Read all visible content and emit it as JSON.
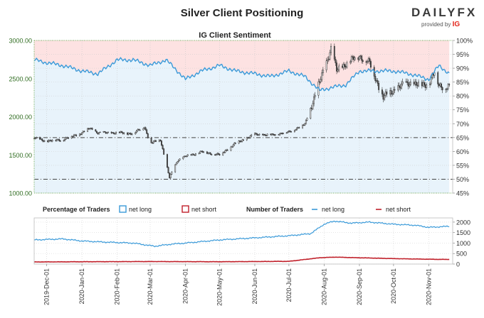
{
  "page_title": "Silver Client Positioning",
  "logo": {
    "brand_left": "DAILY",
    "brand_right": "FX",
    "provided_by": "provided by",
    "provider": "IG"
  },
  "colors": {
    "net_long": "#3a9ad9",
    "net_short": "#c0202a",
    "bull_candle": "#2a2a2a",
    "bear_candle": "#555555",
    "short_zone": "#fde2e2",
    "long_zone": "#e8f3fb"
  },
  "chart_data": [
    {
      "type": "candlestick",
      "title": "IG Client Sentiment",
      "y_left_label": "",
      "y_left_ticks": [
        "1000.00",
        "1500.00",
        "2000.00",
        "2500.00",
        "3000.00"
      ],
      "y_left_range": [
        1000,
        3000
      ],
      "y_right_ticks": [
        "45%",
        "50%",
        "55%",
        "60%",
        "65%",
        "70%",
        "75%",
        "80%",
        "85%",
        "90%",
        "95%",
        "100%"
      ],
      "y_right_range": [
        45,
        100
      ],
      "reference_lines_pct": [
        50,
        65
      ],
      "price_points": [
        {
          "t": "2019-11-20",
          "v": 1720
        },
        {
          "t": "2019-12-01",
          "v": 1680
        },
        {
          "t": "2019-12-15",
          "v": 1700
        },
        {
          "t": "2020-01-01",
          "v": 1790
        },
        {
          "t": "2020-01-08",
          "v": 1850
        },
        {
          "t": "2020-01-15",
          "v": 1790
        },
        {
          "t": "2020-02-01",
          "v": 1790
        },
        {
          "t": "2020-02-15",
          "v": 1780
        },
        {
          "t": "2020-02-25",
          "v": 1870
        },
        {
          "t": "2020-03-01",
          "v": 1650
        },
        {
          "t": "2020-03-10",
          "v": 1700
        },
        {
          "t": "2020-03-18",
          "v": 1200
        },
        {
          "t": "2020-03-25",
          "v": 1430
        },
        {
          "t": "2020-04-01",
          "v": 1480
        },
        {
          "t": "2020-04-15",
          "v": 1540
        },
        {
          "t": "2020-05-01",
          "v": 1500
        },
        {
          "t": "2020-05-15",
          "v": 1650
        },
        {
          "t": "2020-06-01",
          "v": 1770
        },
        {
          "t": "2020-06-15",
          "v": 1760
        },
        {
          "t": "2020-07-01",
          "v": 1800
        },
        {
          "t": "2020-07-15",
          "v": 1900
        },
        {
          "t": "2020-07-22",
          "v": 2200
        },
        {
          "t": "2020-07-28",
          "v": 2450
        },
        {
          "t": "2020-08-07",
          "v": 2900
        },
        {
          "t": "2020-08-12",
          "v": 2600
        },
        {
          "t": "2020-08-20",
          "v": 2700
        },
        {
          "t": "2020-09-01",
          "v": 2800
        },
        {
          "t": "2020-09-10",
          "v": 2700
        },
        {
          "t": "2020-09-22",
          "v": 2250
        },
        {
          "t": "2020-10-01",
          "v": 2350
        },
        {
          "t": "2020-10-15",
          "v": 2450
        },
        {
          "t": "2020-10-25",
          "v": 2400
        },
        {
          "t": "2020-11-01",
          "v": 2450
        },
        {
          "t": "2020-11-06",
          "v": 2580
        },
        {
          "t": "2020-11-10",
          "v": 2400
        },
        {
          "t": "2020-11-19",
          "v": 2400
        }
      ],
      "net_long_pct_points": [
        {
          "t": "2019-11-20",
          "v": 93
        },
        {
          "t": "2019-12-01",
          "v": 92
        },
        {
          "t": "2019-12-15",
          "v": 91
        },
        {
          "t": "2020-01-01",
          "v": 89
        },
        {
          "t": "2020-01-15",
          "v": 88
        },
        {
          "t": "2020-02-01",
          "v": 93
        },
        {
          "t": "2020-02-15",
          "v": 93
        },
        {
          "t": "2020-03-01",
          "v": 91
        },
        {
          "t": "2020-03-15",
          "v": 93
        },
        {
          "t": "2020-03-25",
          "v": 89
        },
        {
          "t": "2020-04-01",
          "v": 86
        },
        {
          "t": "2020-04-15",
          "v": 89
        },
        {
          "t": "2020-05-01",
          "v": 91
        },
        {
          "t": "2020-05-15",
          "v": 89
        },
        {
          "t": "2020-06-01",
          "v": 88
        },
        {
          "t": "2020-06-15",
          "v": 87
        },
        {
          "t": "2020-07-01",
          "v": 89
        },
        {
          "t": "2020-07-15",
          "v": 87
        },
        {
          "t": "2020-07-28",
          "v": 82
        },
        {
          "t": "2020-08-07",
          "v": 83
        },
        {
          "t": "2020-08-20",
          "v": 84
        },
        {
          "t": "2020-09-01",
          "v": 89
        },
        {
          "t": "2020-09-15",
          "v": 89
        },
        {
          "t": "2020-10-01",
          "v": 89
        },
        {
          "t": "2020-10-15",
          "v": 88
        },
        {
          "t": "2020-11-01",
          "v": 86
        },
        {
          "t": "2020-11-10",
          "v": 91
        },
        {
          "t": "2020-11-19",
          "v": 88
        }
      ]
    },
    {
      "type": "line",
      "title": "",
      "legend_left": {
        "heading": "Percentage of Traders",
        "items": [
          "net long",
          "net short"
        ]
      },
      "legend_right": {
        "heading": "Number of Traders",
        "items": [
          "net long",
          "net short"
        ]
      },
      "y_right_ticks": [
        "0",
        "500",
        "1000",
        "1500",
        "2000"
      ],
      "y_range": [
        0,
        2200
      ],
      "x_tick_labels": [
        "2019-Dec-01",
        "2020-Jan-01",
        "2020-Feb-01",
        "2020-Mar-01",
        "2020-Apr-01",
        "2020-May-01",
        "2020-Jun-01",
        "2020-Jul-01",
        "2020-Aug-01",
        "2020-Sep-01",
        "2020-Oct-01",
        "2020-Nov-01"
      ],
      "x_ticks": [
        "2019-12-01",
        "2020-01-01",
        "2020-02-01",
        "2020-03-01",
        "2020-04-01",
        "2020-05-01",
        "2020-06-01",
        "2020-07-01",
        "2020-08-01",
        "2020-09-01",
        "2020-10-01",
        "2020-11-01"
      ],
      "x_range": [
        "2019-11-20",
        "2020-11-22"
      ],
      "series": [
        {
          "name": "net long",
          "points": [
            {
              "t": "2019-11-20",
              "v": 1150
            },
            {
              "t": "2019-12-15",
              "v": 1200
            },
            {
              "t": "2020-01-01",
              "v": 1100
            },
            {
              "t": "2020-01-20",
              "v": 1050
            },
            {
              "t": "2020-02-15",
              "v": 1000
            },
            {
              "t": "2020-03-05",
              "v": 850
            },
            {
              "t": "2020-03-20",
              "v": 950
            },
            {
              "t": "2020-04-01",
              "v": 1000
            },
            {
              "t": "2020-05-01",
              "v": 1150
            },
            {
              "t": "2020-06-01",
              "v": 1250
            },
            {
              "t": "2020-07-01",
              "v": 1350
            },
            {
              "t": "2020-07-20",
              "v": 1450
            },
            {
              "t": "2020-08-01",
              "v": 1900
            },
            {
              "t": "2020-08-10",
              "v": 2050
            },
            {
              "t": "2020-08-25",
              "v": 1950
            },
            {
              "t": "2020-09-10",
              "v": 2000
            },
            {
              "t": "2020-10-01",
              "v": 1900
            },
            {
              "t": "2020-10-20",
              "v": 1850
            },
            {
              "t": "2020-11-01",
              "v": 1750
            },
            {
              "t": "2020-11-19",
              "v": 1800
            }
          ]
        },
        {
          "name": "net short",
          "points": [
            {
              "t": "2019-11-20",
              "v": 100
            },
            {
              "t": "2020-01-01",
              "v": 110
            },
            {
              "t": "2020-03-01",
              "v": 120
            },
            {
              "t": "2020-05-01",
              "v": 110
            },
            {
              "t": "2020-07-01",
              "v": 130
            },
            {
              "t": "2020-07-28",
              "v": 300
            },
            {
              "t": "2020-08-10",
              "v": 330
            },
            {
              "t": "2020-09-01",
              "v": 300
            },
            {
              "t": "2020-10-01",
              "v": 260
            },
            {
              "t": "2020-11-01",
              "v": 230
            },
            {
              "t": "2020-11-19",
              "v": 220
            }
          ]
        }
      ]
    }
  ]
}
